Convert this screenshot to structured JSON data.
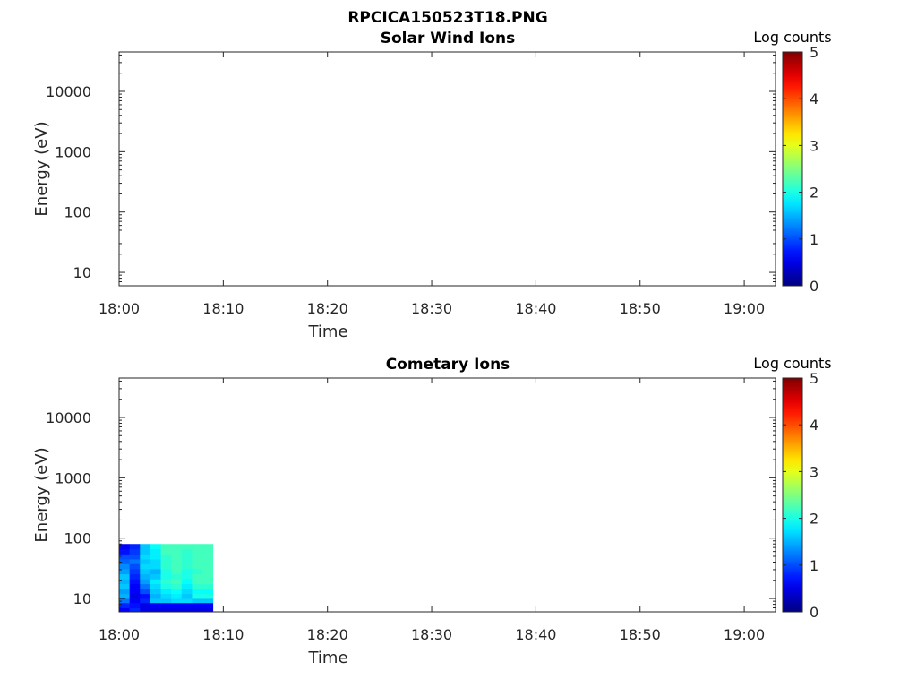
{
  "figure_title": "RPCICA150523T18.PNG",
  "chart_data": [
    {
      "type": "heatmap",
      "title": "Solar Wind Ions",
      "xlabel": "Time",
      "ylabel": "Energy (eV)",
      "x_ticks": [
        "18:00",
        "18:10",
        "18:20",
        "18:30",
        "18:40",
        "18:50",
        "19:00"
      ],
      "x_range": [
        "18:00",
        "19:03"
      ],
      "y_scale": "log",
      "y_ticks": [
        10,
        100,
        1000,
        10000
      ],
      "y_tick_labels": [
        "10",
        "100",
        "1000",
        "10000"
      ],
      "y_range": [
        6,
        45000
      ],
      "colorbar": {
        "label": "Log counts",
        "range": [
          0,
          5
        ],
        "ticks": [
          "0",
          "1",
          "2",
          "3",
          "4",
          "5"
        ],
        "colormap": "jet"
      },
      "cells": []
    },
    {
      "type": "heatmap",
      "title": "Cometary Ions",
      "xlabel": "Time",
      "ylabel": "Energy (eV)",
      "x_ticks": [
        "18:00",
        "18:10",
        "18:20",
        "18:30",
        "18:40",
        "18:50",
        "19:00"
      ],
      "x_range": [
        "18:00",
        "19:03"
      ],
      "y_scale": "log",
      "y_ticks": [
        10,
        100,
        1000,
        10000
      ],
      "y_tick_labels": [
        "10",
        "100",
        "1000",
        "10000"
      ],
      "y_range": [
        6,
        45000
      ],
      "colorbar": {
        "label": "Log counts",
        "range": [
          0,
          5
        ],
        "ticks": [
          "0",
          "1",
          "2",
          "3",
          "4",
          "5"
        ],
        "colormap": "jet"
      },
      "energy_bins": [
        6,
        7,
        8.5,
        10,
        12,
        14.5,
        17.5,
        21,
        25.5,
        31,
        37.5,
        45,
        54.5,
        66,
        80
      ],
      "time_bins": [
        "18:00",
        "18:01",
        "18:02",
        "18:03",
        "18:04",
        "18:05",
        "18:06",
        "18:07",
        "18:08",
        "18:09"
      ],
      "cells": [
        [
          0.6,
          0.8,
          0.5,
          0.5,
          0.5,
          0.5,
          0.5,
          0.5,
          0.5
        ],
        [
          0.8,
          0.7,
          0.5,
          0.6,
          0.6,
          0.6,
          0.6,
          0.6,
          0.6
        ],
        [
          1.2,
          0.6,
          0.8,
          1.6,
          1.6,
          1.7,
          1.7,
          1.6,
          1.6
        ],
        [
          1.5,
          0.5,
          0.7,
          1.5,
          1.7,
          1.8,
          1.6,
          2.0,
          2.0
        ],
        [
          1.4,
          0.6,
          1.0,
          1.6,
          1.8,
          1.9,
          1.7,
          1.9,
          1.9
        ],
        [
          1.6,
          0.6,
          1.2,
          1.7,
          2.0,
          2.1,
          1.8,
          2.1,
          2.1
        ],
        [
          1.5,
          0.7,
          1.4,
          1.8,
          2.1,
          2.2,
          1.9,
          2.2,
          2.2
        ],
        [
          1.6,
          0.8,
          1.5,
          1.6,
          2.0,
          2.1,
          2.0,
          2.2,
          2.2
        ],
        [
          1.4,
          0.9,
          1.6,
          1.5,
          2.0,
          2.2,
          2.0,
          2.1,
          2.2
        ],
        [
          1.3,
          1.0,
          1.7,
          1.7,
          2.1,
          2.2,
          2.1,
          2.2,
          2.2
        ],
        [
          1.1,
          1.2,
          1.6,
          1.7,
          2.1,
          2.2,
          2.1,
          2.2,
          2.2
        ],
        [
          1.0,
          1.0,
          1.7,
          1.8,
          2.1,
          2.2,
          2.1,
          2.2,
          2.2
        ],
        [
          0.7,
          0.9,
          1.6,
          1.8,
          2.2,
          2.2,
          2.1,
          2.2,
          2.2
        ],
        [
          0.6,
          0.8,
          1.6,
          1.9,
          2.2,
          2.2,
          2.2,
          2.2,
          2.2
        ]
      ]
    }
  ]
}
